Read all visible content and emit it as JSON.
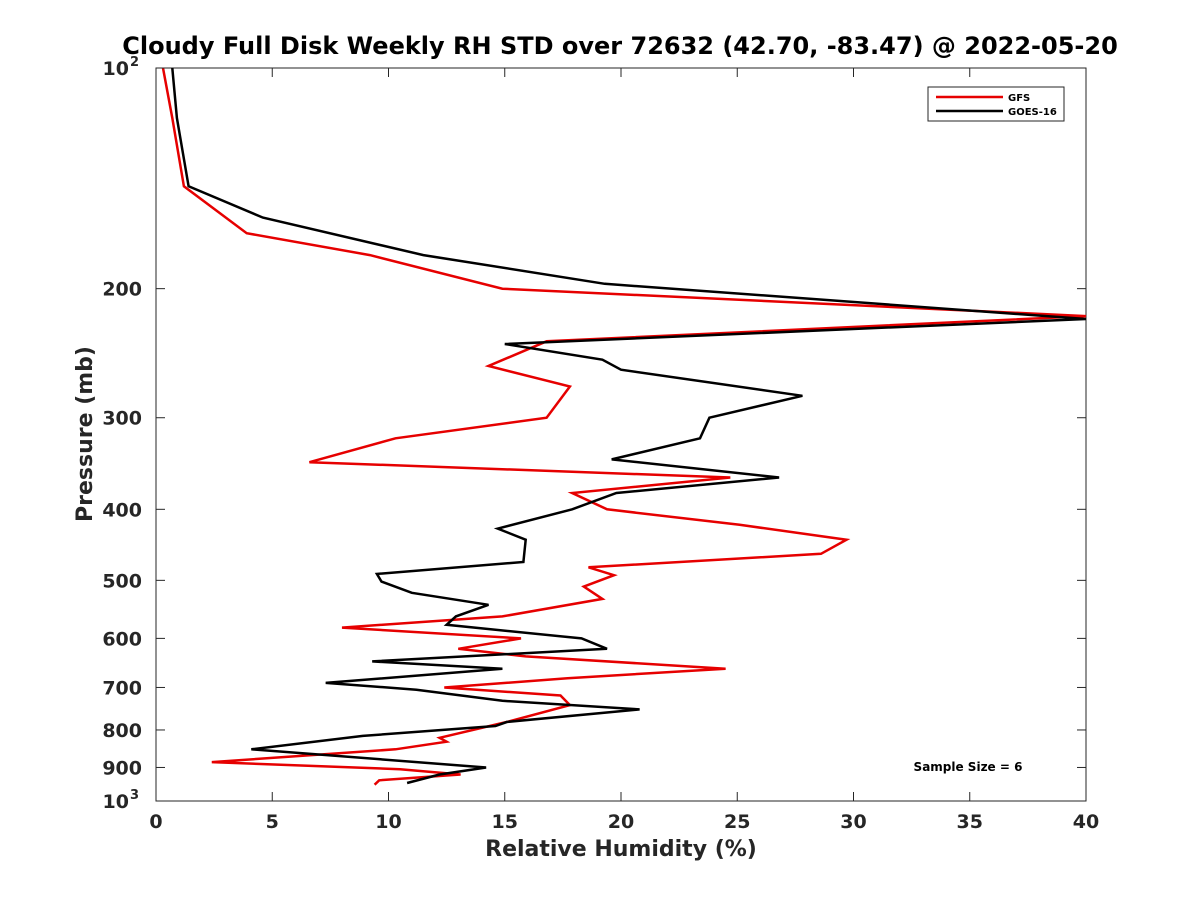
{
  "chart_data": {
    "type": "line",
    "title": "Cloudy Full Disk Weekly RH STD over 72632 (42.70, -83.47) @ 2022-05-20",
    "xlabel": "Relative Humidity (%)",
    "ylabel": "Pressure (mb)",
    "xlim": [
      0,
      40
    ],
    "ylim": [
      100,
      1000
    ],
    "yscale": "log",
    "y_reversed": true,
    "grid": false,
    "legend_position": "top-right",
    "x_ticks": [
      "0",
      "5",
      "10",
      "15",
      "20",
      "25",
      "30",
      "35",
      "40"
    ],
    "y_ticks": [
      {
        "value": 100,
        "base": "10",
        "exp": "2"
      },
      {
        "value": 200,
        "base": "200",
        "exp": ""
      },
      {
        "value": 300,
        "base": "300",
        "exp": ""
      },
      {
        "value": 400,
        "base": "400",
        "exp": ""
      },
      {
        "value": 500,
        "base": "500",
        "exp": ""
      },
      {
        "value": 600,
        "base": "600",
        "exp": ""
      },
      {
        "value": 700,
        "base": "700",
        "exp": ""
      },
      {
        "value": 800,
        "base": "800",
        "exp": ""
      },
      {
        "value": 900,
        "base": "900",
        "exp": ""
      },
      {
        "value": 1000,
        "base": "10",
        "exp": "3"
      }
    ],
    "annotation": "Sample Size = 6",
    "series": [
      {
        "name": "GFS",
        "color": "#e60000",
        "x": [
          0.3,
          0.7,
          1.2,
          3.9,
          9.2,
          14.9,
          40.0,
          16.8,
          14.3,
          17.8,
          16.8,
          10.3,
          6.6,
          24.7,
          17.9,
          19.4,
          25.1,
          29.7,
          28.6,
          18.6,
          19.7,
          18.4,
          19.2,
          14.9,
          8.0,
          15.7,
          13.0,
          15.9,
          24.5,
          17.7,
          12.4,
          17.4,
          17.8,
          15.1,
          12.2,
          12.5,
          10.3,
          2.4,
          10.5,
          13.1,
          9.6,
          9.4
        ],
        "y": [
          100,
          117,
          145,
          168,
          180,
          200,
          218,
          236,
          255,
          272,
          300,
          320,
          345,
          362,
          380,
          400,
          420,
          440,
          460,
          480,
          492,
          510,
          530,
          560,
          580,
          600,
          620,
          635,
          660,
          680,
          700,
          718,
          740,
          780,
          820,
          830,
          850,
          885,
          905,
          920,
          937,
          950
        ]
      },
      {
        "name": "GOES-16",
        "color": "#000000",
        "x": [
          0.7,
          0.9,
          1.4,
          4.6,
          11.5,
          19.3,
          40.0,
          15.0,
          19.2,
          20.0,
          27.8,
          23.8,
          23.4,
          19.6,
          26.8,
          19.8,
          17.9,
          14.7,
          15.9,
          15.8,
          9.5,
          9.7,
          11.0,
          14.3,
          12.9,
          12.5,
          18.3,
          19.4,
          9.3,
          14.9,
          7.3,
          11.2,
          14.9,
          20.8,
          15.1,
          14.6,
          8.9,
          4.1,
          14.2,
          12.2,
          10.8
        ],
        "y": [
          100,
          117,
          145,
          160,
          180,
          197,
          220,
          238,
          250,
          258,
          280,
          300,
          320,
          342,
          362,
          380,
          400,
          425,
          440,
          472,
          490,
          502,
          520,
          540,
          560,
          575,
          600,
          620,
          645,
          660,
          690,
          705,
          730,
          750,
          780,
          790,
          815,
          850,
          900,
          920,
          945
        ]
      }
    ]
  }
}
